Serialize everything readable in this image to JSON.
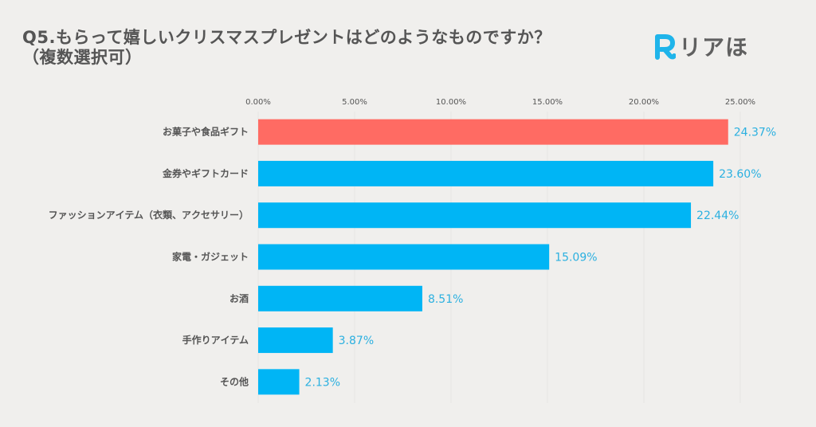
{
  "header": {
    "title_line1": "Q5.もらって嬉しいクリスマスプレゼントはどのようなものですか？",
    "title_line2": "（複数選択可）"
  },
  "logo": {
    "mark": "R",
    "text": "リアほ",
    "mark_color": "#1fb4ea"
  },
  "chart_data": {
    "type": "bar",
    "orientation": "horizontal",
    "title": "Q5.もらって嬉しいクリスマスプレゼントはどのようなものですか？（複数選択可）",
    "xlabel": "",
    "ylabel": "",
    "xlim": [
      0,
      25
    ],
    "x_ticks": [
      0,
      5,
      10,
      15,
      20,
      25
    ],
    "x_tick_labels": [
      "0.00%",
      "5.00%",
      "10.00%",
      "15.00%",
      "20.00%",
      "25.00%"
    ],
    "x_axis_position": "top",
    "grid": true,
    "legend": "none",
    "categories": [
      "お菓子や食品ギフト",
      "金券やギフトカード",
      "ファッションアイテム（衣類、アクセサリー）",
      "家電・ガジェット",
      "お酒",
      "手作りアイテム",
      "その他"
    ],
    "values": [
      24.37,
      23.6,
      22.44,
      15.09,
      8.51,
      3.87,
      2.13
    ],
    "value_labels": [
      "24.37%",
      "23.60%",
      "22.44%",
      "15.09%",
      "8.51%",
      "3.87%",
      "2.13%"
    ],
    "highlight_index": 0,
    "colors": {
      "highlight": "#ff6b63",
      "default": "#00b5f5",
      "value_label": "#2bb0e0"
    }
  }
}
